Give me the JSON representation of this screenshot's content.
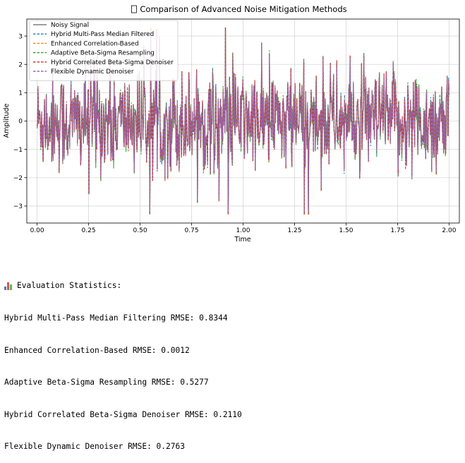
{
  "chart_data": {
    "type": "line",
    "title": "Comparison of Advanced Noise Mitigation Methods",
    "title_icon": "missing-glyph-icon",
    "xlabel": "Time",
    "ylabel": "Amplitude",
    "xlim": [
      -0.05,
      2.05
    ],
    "ylim": [
      -3.6,
      3.6
    ],
    "xticks": [
      0.0,
      0.25,
      0.5,
      0.75,
      1.0,
      1.25,
      1.5,
      1.75,
      2.0
    ],
    "xtick_labels": [
      "0.00",
      "0.25",
      "0.50",
      "0.75",
      "1.00",
      "1.25",
      "1.50",
      "1.75",
      "2.00"
    ],
    "yticks": [
      -3,
      -2,
      -1,
      0,
      1,
      2,
      3
    ],
    "ytick_labels": [
      "−3",
      "−2",
      "−1",
      "0",
      "1",
      "2",
      "3"
    ],
    "grid": true,
    "legend_position": "top-left",
    "x_range": [
      0,
      2
    ],
    "series": [
      {
        "name": "Noisy Signal",
        "color": "#7f7f7f",
        "style": "solid"
      },
      {
        "name": "Hybrid Multi-Pass Median Filtered",
        "color": "#1f77b4",
        "style": "dashed"
      },
      {
        "name": "Enhanced Correlation-Based",
        "color": "#ff7f0e",
        "style": "dashed"
      },
      {
        "name": "Adaptive Beta-Sigma Resampling",
        "color": "#2ca02c",
        "style": "dashed"
      },
      {
        "name": "Hybrid Correlated Beta-Sigma Denoiser",
        "color": "#d62728",
        "style": "dashed"
      },
      {
        "name": "Flexible Dynamic Denoiser",
        "color": "#9467bd",
        "style": "dashed"
      }
    ]
  },
  "stats": {
    "header": "Evaluation Statistics:",
    "header_icon": "bar-chart-icon",
    "lines": [
      "Hybrid Multi-Pass Median Filtering RMSE: 0.8344",
      "Enhanced Correlation-Based RMSE: 0.0012",
      "Adaptive Beta-Sigma Resampling RMSE: 0.5277",
      "Hybrid Correlated Beta-Sigma Denoiser RMSE: 0.2110",
      "Flexible Dynamic Denoiser RMSE: 0.2763"
    ]
  }
}
